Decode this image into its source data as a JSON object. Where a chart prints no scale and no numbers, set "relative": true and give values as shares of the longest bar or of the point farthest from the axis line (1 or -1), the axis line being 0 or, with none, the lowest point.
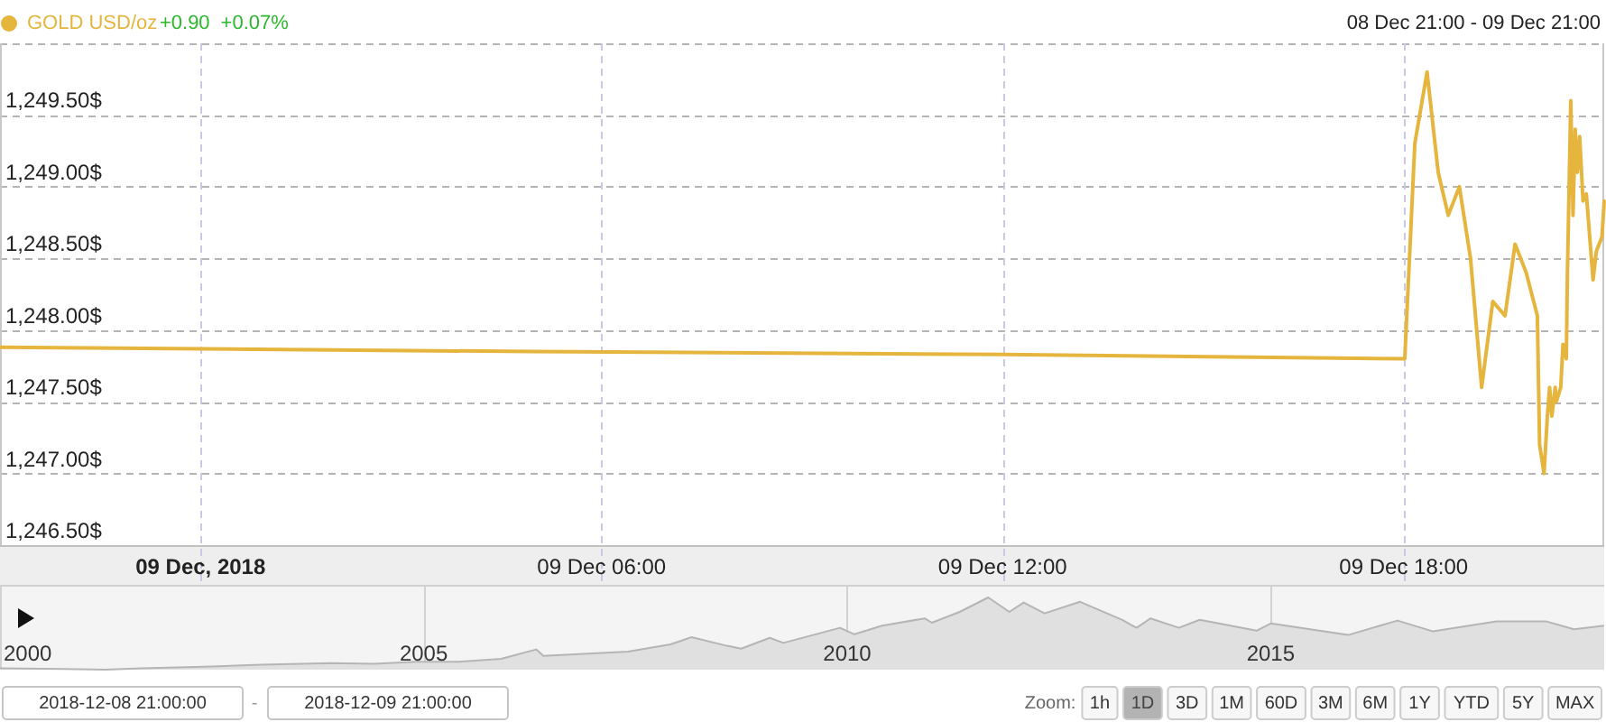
{
  "chart_data": [
    {
      "type": "line",
      "x": [
        "2018-12-08T21:00",
        "2018-12-09T05:00",
        "2018-12-09T12:00",
        "2018-12-09T18:01",
        "2018-12-09T18:10",
        "2018-12-09T18:21",
        "2018-12-09T18:31",
        "2018-12-09T18:40",
        "2018-12-09T18:50",
        "2018-12-09T19:00",
        "2018-12-09T19:10",
        "2018-12-09T19:20",
        "2018-12-09T19:31",
        "2018-12-09T19:40",
        "2018-12-09T19:50",
        "2018-12-09T20:00",
        "2018-12-09T20:02",
        "2018-12-09T20:06",
        "2018-12-09T20:09",
        "2018-12-09T20:11",
        "2018-12-09T20:13",
        "2018-12-09T20:16",
        "2018-12-09T20:17",
        "2018-12-09T20:21",
        "2018-12-09T20:23",
        "2018-12-09T20:26",
        "2018-12-09T20:27",
        "2018-12-09T20:30",
        "2018-12-09T20:32",
        "2018-12-09T20:34",
        "2018-12-09T20:36",
        "2018-12-09T20:38",
        "2018-12-09T20:41",
        "2018-12-09T20:44",
        "2018-12-09T20:50",
        "2018-12-09T20:53",
        "2018-12-09T20:58",
        "2018-12-09T21:00"
      ],
      "series": [
        {
          "name": "GOLD USD/oz",
          "color": "#e5b53e",
          "values": [
            1247.88,
            1247.85,
            1247.83,
            1247.8,
            1249.3,
            1249.8,
            1249.1,
            1248.8,
            1249.0,
            1248.5,
            1247.6,
            1248.2,
            1248.1,
            1248.6,
            1248.4,
            1248.1,
            1247.2,
            1247.0,
            1247.4,
            1247.6,
            1247.4,
            1247.6,
            1247.5,
            1247.6,
            1247.9,
            1247.8,
            1248.4,
            1249.6,
            1248.8,
            1249.4,
            1249.1,
            1249.35,
            1248.9,
            1248.95,
            1248.35,
            1248.55,
            1248.65,
            1248.9
          ]
        }
      ],
      "xlim": [
        "2018-12-08T21:00",
        "2018-12-09T21:00"
      ],
      "xticks": [
        {
          "value": "2018-12-09T00:00",
          "label": "09 Dec, 2018"
        },
        {
          "value": "2018-12-09T06:00",
          "label": "09 Dec 06:00"
        },
        {
          "value": "2018-12-09T12:00",
          "label": "09 Dec 12:00"
        },
        {
          "value": "2018-12-09T18:00",
          "label": "09 Dec 18:00"
        }
      ],
      "ylim": [
        1246.5,
        1250
      ],
      "yticks": [
        {
          "value": 1246.5,
          "label": "1,246.50$"
        },
        {
          "value": 1247,
          "label": "1,247.00$"
        },
        {
          "value": 1247.5,
          "label": "1,247.50$"
        },
        {
          "value": 1248,
          "label": "1,248.00$"
        },
        {
          "value": 1248.5,
          "label": "1,248.50$"
        },
        {
          "value": 1249,
          "label": "1,249.00$"
        },
        {
          "value": 1249.5,
          "label": "1,249.50$"
        },
        {
          "value": 1250,
          "label": null
        }
      ],
      "grid": true,
      "legend": "top left",
      "annotations": [
        "+0.90",
        "+0.07%",
        "08 Dec 21:00 - 09 Dec 21:00",
        "2018-12-08 21:00:00",
        "-",
        "2018-12-09 21:00:00",
        "Zoom:",
        "1h",
        "1D",
        "3D",
        "1M",
        "60D",
        "3M",
        "6M",
        "1Y",
        "YTD",
        "5Y",
        "MAX"
      ]
    },
    {
      "type": "area",
      "relative": true,
      "color": "#e0e0e0",
      "x": [
        "2000-01",
        "2000-10",
        "2001-04",
        "2001-09",
        "2002-06",
        "2003-02",
        "2003-12",
        "2004-06",
        "2004-12",
        "2005-06",
        "2005-12",
        "2006-05",
        "2006-06",
        "2007-06",
        "2007-12",
        "2008-03",
        "2008-08",
        "2008-10",
        "2009-02",
        "2009-04",
        "2009-12",
        "2010-02",
        "2010-06",
        "2010-12",
        "2011-01",
        "2011-05",
        "2011-09",
        "2011-12",
        "2012-02",
        "2012-05",
        "2012-10",
        "2013-04",
        "2013-06",
        "2013-08",
        "2013-12",
        "2014-03",
        "2014-11",
        "2015-01",
        "2015-12",
        "2016-07",
        "2016-12",
        "2017-09",
        "2018-01",
        "2018-04",
        "2018-08",
        "2018-12-09"
      ],
      "values": [
        0.02,
        0.01,
        0,
        0.02,
        0.04,
        0.07,
        0.09,
        0.08,
        0.11,
        0.11,
        0.15,
        0.28,
        0.19,
        0.25,
        0.35,
        0.45,
        0.33,
        0.29,
        0.44,
        0.37,
        0.58,
        0.49,
        0.61,
        0.71,
        0.65,
        0.8,
        1,
        0.8,
        0.93,
        0.78,
        0.94,
        0.69,
        0.58,
        0.71,
        0.58,
        0.69,
        0.54,
        0.64,
        0.48,
        0.68,
        0.53,
        0.67,
        0.67,
        0.67,
        0.56,
        0.61
      ],
      "xlim": [
        "2000-01-01",
        "2018-12-09"
      ],
      "xticks": [
        {
          "value": "2000-01-01",
          "label": "2000"
        },
        {
          "value": "2005-01-01",
          "label": "2005"
        },
        {
          "value": "2010-01-01",
          "label": "2010"
        },
        {
          "value": "2015-01-01",
          "label": "2015"
        }
      ],
      "grid": "x"
    }
  ]
}
